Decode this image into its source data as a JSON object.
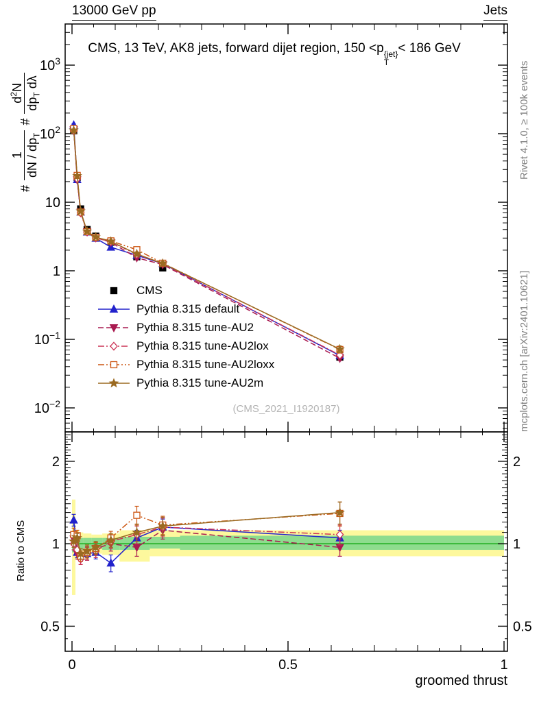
{
  "header": {
    "left": "13000 GeV pp",
    "right": "Jets"
  },
  "title": {
    "pre": "CMS, 13 TeV, AK8 jets, forward dijet region, 150 <p",
    "sup": "{jet}",
    "sub": "T",
    "post": "< 186 GeV"
  },
  "ylabel": {
    "hash": "#",
    "hash2": "#",
    "f1num": "1",
    "f1den_a": "dN / dp",
    "f1den_sub": "T",
    "f2num_a": "d",
    "f2num_sup": "2",
    "f2num_b": "N",
    "f2den_a": "dp",
    "f2den_sub": "T",
    "f2den_b": " dλ"
  },
  "ratio_ylabel": "Ratio to CMS",
  "xlabel": "groomed thrust",
  "credits_top": "Rivet 4.1.0, ≥ 100k events",
  "credits_bottom": "mcplots.cern.ch [arXiv:2401.10621]",
  "watermark": "(CMS_2021_I1920187)",
  "chart_data": {
    "type": "line",
    "title": "CMS, 13 TeV, AK8 jets, forward dijet region, 150 <pT^{jet}< 186 GeV",
    "xlabel": "groomed thrust",
    "ylabel": "# 1/(dN/dpT) d2N/(dpT dλ)",
    "x_ticks": [
      0,
      0.5,
      1
    ],
    "x_tick_labels": [
      "0",
      "0.5",
      "1"
    ],
    "xlim": [
      -0.016,
      1.008
    ],
    "main_axis": {
      "scale": "log",
      "exp_min": -2.35,
      "exp_max": 3.6,
      "label_exponents": [
        3,
        2,
        1,
        0,
        -1,
        -2
      ]
    },
    "ratio_axis": {
      "scale": "log",
      "min": 0.405,
      "max": 2.56,
      "labels": [
        2,
        1,
        0.5
      ],
      "label_texts": [
        "2",
        "1",
        "0.5"
      ]
    },
    "x": [
      0.004,
      0.012,
      0.02,
      0.035,
      0.055,
      0.09,
      0.15,
      0.21,
      0.62
    ],
    "series": [
      {
        "name": "CMS",
        "color": "#000000",
        "marker": "square",
        "filled": true,
        "line": "none",
        "values": [
          110,
          23,
          8.0,
          4.0,
          3.2,
          2.6,
          1.6,
          1.1,
          0.055
        ],
        "errors": [
          8,
          1.5,
          0.5,
          0.3,
          0.25,
          0.2,
          0.12,
          0.09,
          0.005
        ]
      },
      {
        "name": "Pythia 8.315 default",
        "color": "#2222cc",
        "marker": "triangle-up",
        "filled": true,
        "line": "solid",
        "values": [
          134,
          21.4,
          7.2,
          3.68,
          2.98,
          2.21,
          1.68,
          1.27,
          0.058
        ],
        "errors": [
          6,
          1.0,
          0.3,
          0.18,
          0.15,
          0.13,
          0.11,
          0.09,
          0.004
        ],
        "ratio": [
          1.22,
          0.93,
          0.9,
          0.92,
          0.93,
          0.85,
          1.05,
          1.15,
          1.05
        ],
        "ratio_errors": [
          0.06,
          0.04,
          0.04,
          0.05,
          0.05,
          0.06,
          0.07,
          0.08,
          0.07
        ]
      },
      {
        "name": "Pythia 8.315 tune-AU2",
        "color": "#a91a50",
        "marker": "triangle-down",
        "filled": true,
        "line": "dash",
        "values": [
          114,
          21.2,
          7.2,
          3.72,
          3.07,
          2.6,
          1.55,
          1.23,
          0.053
        ],
        "errors": [
          5,
          1.0,
          0.3,
          0.18,
          0.15,
          0.13,
          0.1,
          0.09,
          0.004
        ],
        "ratio": [
          1.04,
          0.92,
          0.9,
          0.93,
          0.96,
          1.0,
          0.97,
          1.12,
          0.97
        ],
        "ratio_errors": [
          0.05,
          0.04,
          0.04,
          0.05,
          0.05,
          0.06,
          0.07,
          0.08,
          0.07
        ]
      },
      {
        "name": "Pythia 8.315 tune-AU2lox",
        "color": "#cc3355",
        "marker": "diamond",
        "filled": false,
        "line": "dashdot",
        "values": [
          110,
          21.9,
          7.0,
          3.68,
          3.01,
          2.65,
          1.73,
          1.27,
          0.059
        ],
        "errors": [
          5,
          1.0,
          0.3,
          0.18,
          0.15,
          0.14,
          0.12,
          0.1,
          0.005
        ],
        "ratio": [
          1.0,
          0.95,
          0.88,
          0.92,
          0.94,
          1.02,
          1.08,
          1.15,
          1.08
        ],
        "ratio_errors": [
          0.05,
          0.04,
          0.04,
          0.05,
          0.05,
          0.06,
          0.08,
          0.09,
          0.09
        ]
      },
      {
        "name": "Pythia 8.315 tune-AU2loxx",
        "color": "#cc5511",
        "marker": "square",
        "filled": false,
        "line": "dashdotdot",
        "values": [
          119,
          24.6,
          7.2,
          3.72,
          3.07,
          2.73,
          2.03,
          1.29,
          0.071
        ],
        "errors": [
          6,
          1.2,
          0.3,
          0.18,
          0.16,
          0.15,
          0.16,
          0.1,
          0.008
        ],
        "ratio": [
          1.08,
          1.07,
          0.9,
          0.93,
          0.96,
          1.05,
          1.27,
          1.17,
          1.29
        ],
        "ratio_errors": [
          0.06,
          0.05,
          0.04,
          0.05,
          0.05,
          0.06,
          0.1,
          0.09,
          0.13
        ]
      },
      {
        "name": "Pythia 8.315 tune-AU2m",
        "color": "#9b6a21",
        "marker": "star",
        "filled": true,
        "line": "solid",
        "values": [
          112,
          24.2,
          7.4,
          3.76,
          3.1,
          2.68,
          1.76,
          1.28,
          0.072
        ],
        "errors": [
          5,
          1.1,
          0.3,
          0.18,
          0.15,
          0.14,
          0.13,
          0.1,
          0.008
        ],
        "ratio": [
          1.02,
          1.05,
          0.92,
          0.94,
          0.97,
          1.03,
          1.1,
          1.16,
          1.3
        ],
        "ratio_errors": [
          0.05,
          0.04,
          0.04,
          0.05,
          0.05,
          0.06,
          0.08,
          0.09,
          0.12
        ]
      }
    ],
    "bands": {
      "yellow": {
        "color": "#fdf89d",
        "bins": [
          [
            0,
            0.008,
            0.65,
            1.45
          ],
          [
            0.008,
            0.016,
            0.88,
            1.12
          ],
          [
            0.016,
            0.026,
            0.9,
            1.1
          ],
          [
            0.026,
            0.045,
            0.91,
            1.09
          ],
          [
            0.045,
            0.07,
            0.92,
            1.08
          ],
          [
            0.07,
            0.11,
            0.91,
            1.09
          ],
          [
            0.11,
            0.18,
            0.86,
            1.12
          ],
          [
            0.18,
            0.25,
            0.9,
            1.12
          ],
          [
            0.25,
            1.0,
            0.9,
            1.12
          ]
        ]
      },
      "green": {
        "color": "#8edc8e",
        "bins": [
          [
            0,
            0.008,
            0.93,
            1.07
          ],
          [
            0.008,
            0.016,
            0.95,
            1.05
          ],
          [
            0.016,
            0.026,
            0.95,
            1.05
          ],
          [
            0.026,
            0.045,
            0.96,
            1.05
          ],
          [
            0.045,
            0.07,
            0.96,
            1.05
          ],
          [
            0.07,
            0.11,
            0.95,
            1.05
          ],
          [
            0.11,
            0.18,
            0.95,
            1.06
          ],
          [
            0.18,
            0.25,
            0.96,
            1.06
          ],
          [
            0.25,
            1.0,
            0.95,
            1.07
          ]
        ]
      }
    },
    "ref_line": {
      "y": 1,
      "color": "#00a000"
    }
  }
}
